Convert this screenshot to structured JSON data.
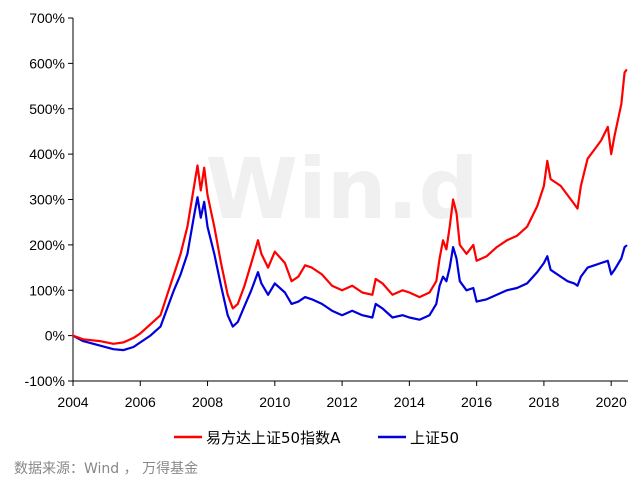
{
  "chart_data": {
    "type": "line",
    "watermark": "Win.d",
    "source": "数据来源：Wind ， 万得基金",
    "xlim": [
      2004,
      2020.5
    ],
    "ylim": [
      -100,
      700
    ],
    "x_ticks": [
      "2004",
      "2006",
      "2008",
      "2010",
      "2012",
      "2014",
      "2016",
      "2018",
      "2020"
    ],
    "y_ticks": [
      "-100%",
      "0%",
      "100%",
      "200%",
      "300%",
      "400%",
      "500%",
      "600%",
      "700%"
    ],
    "legend_position": "bottom",
    "colors": {
      "fund": "#ff0000",
      "index": "#0000dd"
    },
    "series": [
      {
        "name": "易方达上证50指数A",
        "points": [
          [
            2004.0,
            0
          ],
          [
            2004.3,
            -8
          ],
          [
            2004.8,
            -12
          ],
          [
            2005.2,
            -18
          ],
          [
            2005.5,
            -15
          ],
          [
            2005.8,
            -5
          ],
          [
            2006.0,
            5
          ],
          [
            2006.3,
            25
          ],
          [
            2006.6,
            45
          ],
          [
            2006.8,
            90
          ],
          [
            2007.0,
            135
          ],
          [
            2007.2,
            180
          ],
          [
            2007.4,
            240
          ],
          [
            2007.6,
            330
          ],
          [
            2007.7,
            375
          ],
          [
            2007.8,
            320
          ],
          [
            2007.9,
            370
          ],
          [
            2008.0,
            310
          ],
          [
            2008.2,
            240
          ],
          [
            2008.4,
            160
          ],
          [
            2008.6,
            90
          ],
          [
            2008.75,
            60
          ],
          [
            2008.9,
            70
          ],
          [
            2009.1,
            110
          ],
          [
            2009.3,
            160
          ],
          [
            2009.5,
            210
          ],
          [
            2009.6,
            180
          ],
          [
            2009.8,
            150
          ],
          [
            2010.0,
            185
          ],
          [
            2010.3,
            160
          ],
          [
            2010.5,
            120
          ],
          [
            2010.7,
            130
          ],
          [
            2010.9,
            155
          ],
          [
            2011.1,
            150
          ],
          [
            2011.4,
            135
          ],
          [
            2011.7,
            110
          ],
          [
            2012.0,
            100
          ],
          [
            2012.3,
            110
          ],
          [
            2012.6,
            95
          ],
          [
            2012.9,
            90
          ],
          [
            2013.0,
            125
          ],
          [
            2013.2,
            115
          ],
          [
            2013.5,
            90
          ],
          [
            2013.8,
            100
          ],
          [
            2014.0,
            95
          ],
          [
            2014.3,
            85
          ],
          [
            2014.6,
            95
          ],
          [
            2014.8,
            120
          ],
          [
            2014.9,
            170
          ],
          [
            2015.0,
            210
          ],
          [
            2015.1,
            190
          ],
          [
            2015.2,
            240
          ],
          [
            2015.3,
            300
          ],
          [
            2015.4,
            270
          ],
          [
            2015.5,
            200
          ],
          [
            2015.7,
            180
          ],
          [
            2015.9,
            200
          ],
          [
            2016.0,
            165
          ],
          [
            2016.3,
            175
          ],
          [
            2016.6,
            195
          ],
          [
            2016.9,
            210
          ],
          [
            2017.2,
            220
          ],
          [
            2017.5,
            240
          ],
          [
            2017.8,
            285
          ],
          [
            2018.0,
            330
          ],
          [
            2018.1,
            385
          ],
          [
            2018.2,
            345
          ],
          [
            2018.5,
            330
          ],
          [
            2018.7,
            310
          ],
          [
            2018.9,
            290
          ],
          [
            2019.0,
            280
          ],
          [
            2019.1,
            330
          ],
          [
            2019.3,
            390
          ],
          [
            2019.5,
            410
          ],
          [
            2019.7,
            430
          ],
          [
            2019.9,
            460
          ],
          [
            2020.0,
            400
          ],
          [
            2020.1,
            440
          ],
          [
            2020.3,
            510
          ],
          [
            2020.4,
            580
          ],
          [
            2020.45,
            585
          ]
        ]
      },
      {
        "name": "上证50",
        "points": [
          [
            2004.0,
            0
          ],
          [
            2004.3,
            -12
          ],
          [
            2004.8,
            -22
          ],
          [
            2005.2,
            -30
          ],
          [
            2005.5,
            -32
          ],
          [
            2005.8,
            -25
          ],
          [
            2006.0,
            -15
          ],
          [
            2006.3,
            0
          ],
          [
            2006.6,
            20
          ],
          [
            2006.8,
            60
          ],
          [
            2007.0,
            100
          ],
          [
            2007.2,
            135
          ],
          [
            2007.4,
            180
          ],
          [
            2007.6,
            265
          ],
          [
            2007.7,
            305
          ],
          [
            2007.8,
            260
          ],
          [
            2007.9,
            295
          ],
          [
            2008.0,
            240
          ],
          [
            2008.2,
            180
          ],
          [
            2008.4,
            110
          ],
          [
            2008.6,
            45
          ],
          [
            2008.75,
            20
          ],
          [
            2008.9,
            30
          ],
          [
            2009.1,
            65
          ],
          [
            2009.3,
            100
          ],
          [
            2009.5,
            140
          ],
          [
            2009.6,
            115
          ],
          [
            2009.8,
            90
          ],
          [
            2010.0,
            115
          ],
          [
            2010.3,
            95
          ],
          [
            2010.5,
            70
          ],
          [
            2010.7,
            75
          ],
          [
            2010.9,
            85
          ],
          [
            2011.1,
            80
          ],
          [
            2011.4,
            70
          ],
          [
            2011.7,
            55
          ],
          [
            2012.0,
            45
          ],
          [
            2012.3,
            55
          ],
          [
            2012.6,
            45
          ],
          [
            2012.9,
            40
          ],
          [
            2013.0,
            70
          ],
          [
            2013.2,
            60
          ],
          [
            2013.5,
            40
          ],
          [
            2013.8,
            45
          ],
          [
            2014.0,
            40
          ],
          [
            2014.3,
            35
          ],
          [
            2014.6,
            45
          ],
          [
            2014.8,
            70
          ],
          [
            2014.9,
            110
          ],
          [
            2015.0,
            130
          ],
          [
            2015.1,
            120
          ],
          [
            2015.2,
            150
          ],
          [
            2015.3,
            195
          ],
          [
            2015.4,
            170
          ],
          [
            2015.5,
            120
          ],
          [
            2015.7,
            100
          ],
          [
            2015.9,
            105
          ],
          [
            2016.0,
            75
          ],
          [
            2016.3,
            80
          ],
          [
            2016.6,
            90
          ],
          [
            2016.9,
            100
          ],
          [
            2017.2,
            105
          ],
          [
            2017.5,
            115
          ],
          [
            2017.8,
            140
          ],
          [
            2018.0,
            160
          ],
          [
            2018.1,
            175
          ],
          [
            2018.2,
            145
          ],
          [
            2018.5,
            130
          ],
          [
            2018.7,
            120
          ],
          [
            2018.9,
            115
          ],
          [
            2019.0,
            110
          ],
          [
            2019.1,
            130
          ],
          [
            2019.3,
            150
          ],
          [
            2019.5,
            155
          ],
          [
            2019.7,
            160
          ],
          [
            2019.9,
            165
          ],
          [
            2020.0,
            135
          ],
          [
            2020.1,
            145
          ],
          [
            2020.3,
            170
          ],
          [
            2020.4,
            195
          ],
          [
            2020.45,
            198
          ]
        ]
      }
    ]
  }
}
